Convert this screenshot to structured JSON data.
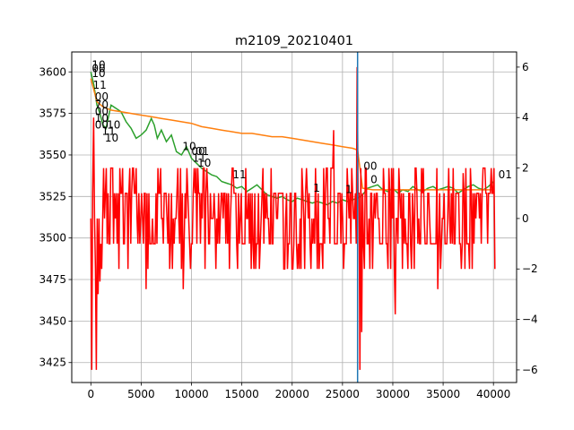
{
  "chart_data": {
    "type": "line",
    "title": "m2109_20210401",
    "xlabel": "",
    "ylabel_left": "",
    "ylabel_right": "",
    "xlim": [
      -1900,
      42300
    ],
    "ylim_left": [
      3413,
      3612
    ],
    "ylim_right": [
      -6.5,
      6.6
    ],
    "grid": true,
    "x_ticks": [
      0,
      5000,
      10000,
      15000,
      20000,
      25000,
      30000,
      35000,
      40000
    ],
    "x_tick_labels": [
      "0",
      "5000",
      "10000",
      "15000",
      "20000",
      "25000",
      "30000",
      "35000",
      "40000"
    ],
    "y_left_ticks": [
      3425,
      3450,
      3475,
      3500,
      3525,
      3550,
      3575,
      3600
    ],
    "y_left_tick_labels": [
      "3425",
      "3450",
      "3475",
      "3500",
      "3525",
      "3550",
      "3575",
      "3600"
    ],
    "y_right_ticks": [
      -6,
      -4,
      -2,
      0,
      2,
      4,
      6
    ],
    "y_right_tick_labels": [
      "−6",
      "−4",
      "−2",
      "0",
      "2",
      "4",
      "6"
    ],
    "vline_x": 26500,
    "series": [
      {
        "color": "#2ca02c",
        "axis": "left",
        "x": [
          0,
          300,
          600,
          900,
          1200,
          1500,
          2000,
          2500,
          3000,
          3500,
          4000,
          4500,
          5000,
          5500,
          6000,
          6300,
          6600,
          7000,
          7500,
          8000,
          8500,
          9000,
          9500,
          10000,
          10500,
          11000,
          11500,
          12000,
          12500,
          13000,
          13500,
          14000,
          14500,
          15000,
          15500,
          16000,
          16500,
          17000,
          17500,
          18000,
          18500,
          19000,
          19500,
          20000,
          20500,
          21000,
          21500,
          22000,
          22500,
          23000,
          23500,
          24000,
          24500,
          25000,
          25500,
          26000,
          26500,
          27000,
          27500,
          28000,
          28500,
          29000,
          29500,
          30000,
          30500,
          31000,
          31500,
          32000,
          32500,
          33000,
          33500,
          34000,
          34500,
          35000,
          35500,
          36000,
          36500,
          37000,
          37500,
          38000,
          38500,
          39000,
          39500,
          40000
        ],
        "y": [
          3600,
          3592,
          3580,
          3575,
          3568,
          3566,
          3580,
          3578,
          3576,
          3570,
          3566,
          3560,
          3562,
          3565,
          3572,
          3568,
          3560,
          3565,
          3558,
          3562,
          3552,
          3550,
          3555,
          3548,
          3545,
          3542,
          3540,
          3538,
          3537,
          3534,
          3533,
          3532,
          3530,
          3531,
          3528,
          3530,
          3532,
          3529,
          3526,
          3525,
          3524,
          3525,
          3523,
          3522,
          3524,
          3523,
          3522,
          3521,
          3522,
          3521,
          3520,
          3522,
          3521,
          3523,
          3522,
          3523,
          3524,
          3526,
          3530,
          3531,
          3532,
          3529,
          3528,
          3530,
          3527,
          3529,
          3528,
          3531,
          3529,
          3528,
          3530,
          3531,
          3529,
          3530,
          3531,
          3530,
          3527,
          3529,
          3531,
          3532,
          3530,
          3529,
          3531,
          3534
        ]
      },
      {
        "color": "#ff7f0e",
        "axis": "left",
        "x": [
          0,
          600,
          1200,
          2000,
          3000,
          4000,
          5000,
          6000,
          7000,
          8000,
          9000,
          10000,
          11000,
          12000,
          13000,
          14000,
          15000,
          16000,
          17000,
          18000,
          19000,
          20000,
          21000,
          22000,
          23000,
          24000,
          25000,
          26000,
          26500,
          27000,
          28000,
          30000,
          32000,
          34000,
          36000,
          38000,
          40000
        ],
        "y": [
          3596,
          3582,
          3579,
          3577,
          3576,
          3575,
          3574,
          3573,
          3572,
          3571,
          3570,
          3569,
          3567,
          3566,
          3565,
          3564,
          3563,
          3563,
          3562,
          3561,
          3561,
          3560,
          3559,
          3558,
          3557,
          3556,
          3555,
          3554,
          3553,
          3530,
          3529,
          3529,
          3529,
          3529,
          3529,
          3529,
          3529
        ]
      }
    ],
    "red_series": {
      "color": "#ff0000",
      "axis": "right",
      "levels": [
        -2,
        -1,
        0,
        1,
        2
      ],
      "spikes": [
        {
          "x": 100,
          "y": -6
        },
        {
          "x": 300,
          "y": 4
        },
        {
          "x": 500,
          "y": -6
        },
        {
          "x": 700,
          "y": -3
        },
        {
          "x": 900,
          "y": -2.5
        },
        {
          "x": 5500,
          "y": -2.8
        },
        {
          "x": 9200,
          "y": -2.8
        },
        {
          "x": 24100,
          "y": 3.5
        },
        {
          "x": 26500,
          "y": 6
        },
        {
          "x": 26700,
          "y": -6
        },
        {
          "x": 26900,
          "y": -4.5
        },
        {
          "x": 30200,
          "y": -3.8
        },
        {
          "x": 34500,
          "y": -2.8
        },
        {
          "x": 37000,
          "y": 1.8
        }
      ]
    },
    "annotations": [
      {
        "text": "10",
        "x": 0,
        "y": 3602
      },
      {
        "text": "00",
        "x": 0,
        "y": 3600
      },
      {
        "text": "10",
        "x": 0,
        "y": 3597
      },
      {
        "text": "11",
        "x": 100,
        "y": 3590
      },
      {
        "text": "00",
        "x": 300,
        "y": 3583
      },
      {
        "text": "70",
        "x": 300,
        "y": 3578
      },
      {
        "text": "00",
        "x": 300,
        "y": 3574
      },
      {
        "text": "10",
        "x": 300,
        "y": 3570
      },
      {
        "text": "00",
        "x": 300,
        "y": 3566
      },
      {
        "text": "10",
        "x": 1500,
        "y": 3566
      },
      {
        "text": "11",
        "x": 1000,
        "y": 3562
      },
      {
        "text": "10",
        "x": 1300,
        "y": 3558
      },
      {
        "text": "10",
        "x": 9000,
        "y": 3553
      },
      {
        "text": "00",
        "x": 9900,
        "y": 3550
      },
      {
        "text": "01",
        "x": 10300,
        "y": 3550
      },
      {
        "text": "11",
        "x": 10000,
        "y": 3546
      },
      {
        "text": "10",
        "x": 10500,
        "y": 3543
      },
      {
        "text": "11",
        "x": 14000,
        "y": 3536
      },
      {
        "text": "1",
        "x": 22000,
        "y": 3528
      },
      {
        "text": "1",
        "x": 25200,
        "y": 3527
      },
      {
        "text": "00",
        "x": 27000,
        "y": 3541
      },
      {
        "text": "0",
        "x": 27700,
        "y": 3533
      },
      {
        "text": "01",
        "x": 40400,
        "y": 3536
      }
    ]
  }
}
